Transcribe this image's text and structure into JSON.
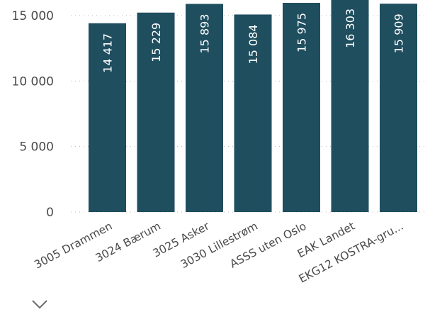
{
  "chart_data": {
    "type": "bar",
    "categories": [
      "3005 Drammen",
      "3024 Bærum",
      "3025 Asker",
      "3030 Lillestrøm",
      "ASSS uten Oslo",
      "EAK Landet",
      "EKG12 KOSTRA-gru..."
    ],
    "values": [
      14417,
      15229,
      15893,
      15084,
      15975,
      16303,
      15909
    ],
    "data_labels": [
      "14 417",
      "15 229",
      "15 893",
      "15 084",
      "15 975",
      "16 303",
      "15 909"
    ],
    "y_ticks": [
      0,
      5000,
      10000,
      15000
    ],
    "y_tick_labels": [
      "0",
      "5 000",
      "10 000",
      "15 000"
    ],
    "ylim": [
      0,
      16303
    ],
    "grid": true,
    "legend": "none"
  },
  "colors": {
    "bar": "#1f4e5f",
    "data_label": "#ffffff",
    "axis_text": "#4a4a4a",
    "gridline": "#b8b8b8"
  },
  "icons": {
    "bottom_partial": "chevron-icon"
  }
}
